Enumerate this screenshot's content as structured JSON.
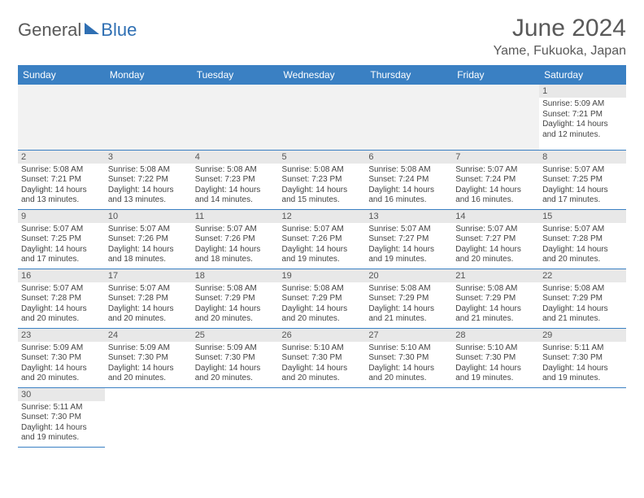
{
  "brand": {
    "part1": "General",
    "part2": "Blue"
  },
  "title": "June 2024",
  "location": "Yame, Fukuoka, Japan",
  "colors": {
    "header_bg": "#3a80c3",
    "header_text": "#ffffff",
    "daynum_bg": "#e8e8e8",
    "blank_bg": "#f2f2f2",
    "border": "#3a80c3",
    "title_color": "#595959",
    "body_text": "#444444"
  },
  "weekdays": [
    "Sunday",
    "Monday",
    "Tuesday",
    "Wednesday",
    "Thursday",
    "Friday",
    "Saturday"
  ],
  "layout": {
    "first_weekday_index": 6,
    "days_in_month": 30,
    "rows": 6
  },
  "days": {
    "1": {
      "sunrise": "5:09 AM",
      "sunset": "7:21 PM",
      "daylight": "14 hours and 12 minutes."
    },
    "2": {
      "sunrise": "5:08 AM",
      "sunset": "7:21 PM",
      "daylight": "14 hours and 13 minutes."
    },
    "3": {
      "sunrise": "5:08 AM",
      "sunset": "7:22 PM",
      "daylight": "14 hours and 13 minutes."
    },
    "4": {
      "sunrise": "5:08 AM",
      "sunset": "7:23 PM",
      "daylight": "14 hours and 14 minutes."
    },
    "5": {
      "sunrise": "5:08 AM",
      "sunset": "7:23 PM",
      "daylight": "14 hours and 15 minutes."
    },
    "6": {
      "sunrise": "5:08 AM",
      "sunset": "7:24 PM",
      "daylight": "14 hours and 16 minutes."
    },
    "7": {
      "sunrise": "5:07 AM",
      "sunset": "7:24 PM",
      "daylight": "14 hours and 16 minutes."
    },
    "8": {
      "sunrise": "5:07 AM",
      "sunset": "7:25 PM",
      "daylight": "14 hours and 17 minutes."
    },
    "9": {
      "sunrise": "5:07 AM",
      "sunset": "7:25 PM",
      "daylight": "14 hours and 17 minutes."
    },
    "10": {
      "sunrise": "5:07 AM",
      "sunset": "7:26 PM",
      "daylight": "14 hours and 18 minutes."
    },
    "11": {
      "sunrise": "5:07 AM",
      "sunset": "7:26 PM",
      "daylight": "14 hours and 18 minutes."
    },
    "12": {
      "sunrise": "5:07 AM",
      "sunset": "7:26 PM",
      "daylight": "14 hours and 19 minutes."
    },
    "13": {
      "sunrise": "5:07 AM",
      "sunset": "7:27 PM",
      "daylight": "14 hours and 19 minutes."
    },
    "14": {
      "sunrise": "5:07 AM",
      "sunset": "7:27 PM",
      "daylight": "14 hours and 20 minutes."
    },
    "15": {
      "sunrise": "5:07 AM",
      "sunset": "7:28 PM",
      "daylight": "14 hours and 20 minutes."
    },
    "16": {
      "sunrise": "5:07 AM",
      "sunset": "7:28 PM",
      "daylight": "14 hours and 20 minutes."
    },
    "17": {
      "sunrise": "5:07 AM",
      "sunset": "7:28 PM",
      "daylight": "14 hours and 20 minutes."
    },
    "18": {
      "sunrise": "5:08 AM",
      "sunset": "7:29 PM",
      "daylight": "14 hours and 20 minutes."
    },
    "19": {
      "sunrise": "5:08 AM",
      "sunset": "7:29 PM",
      "daylight": "14 hours and 20 minutes."
    },
    "20": {
      "sunrise": "5:08 AM",
      "sunset": "7:29 PM",
      "daylight": "14 hours and 21 minutes."
    },
    "21": {
      "sunrise": "5:08 AM",
      "sunset": "7:29 PM",
      "daylight": "14 hours and 21 minutes."
    },
    "22": {
      "sunrise": "5:08 AM",
      "sunset": "7:29 PM",
      "daylight": "14 hours and 21 minutes."
    },
    "23": {
      "sunrise": "5:09 AM",
      "sunset": "7:30 PM",
      "daylight": "14 hours and 20 minutes."
    },
    "24": {
      "sunrise": "5:09 AM",
      "sunset": "7:30 PM",
      "daylight": "14 hours and 20 minutes."
    },
    "25": {
      "sunrise": "5:09 AM",
      "sunset": "7:30 PM",
      "daylight": "14 hours and 20 minutes."
    },
    "26": {
      "sunrise": "5:10 AM",
      "sunset": "7:30 PM",
      "daylight": "14 hours and 20 minutes."
    },
    "27": {
      "sunrise": "5:10 AM",
      "sunset": "7:30 PM",
      "daylight": "14 hours and 20 minutes."
    },
    "28": {
      "sunrise": "5:10 AM",
      "sunset": "7:30 PM",
      "daylight": "14 hours and 19 minutes."
    },
    "29": {
      "sunrise": "5:11 AM",
      "sunset": "7:30 PM",
      "daylight": "14 hours and 19 minutes."
    },
    "30": {
      "sunrise": "5:11 AM",
      "sunset": "7:30 PM",
      "daylight": "14 hours and 19 minutes."
    }
  },
  "labels": {
    "sunrise_prefix": "Sunrise: ",
    "sunset_prefix": "Sunset: ",
    "daylight_prefix": "Daylight: "
  }
}
